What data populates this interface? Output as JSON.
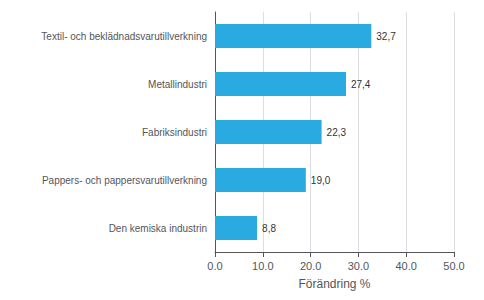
{
  "chart_data": {
    "type": "bar",
    "orientation": "horizontal",
    "categories": [
      "Den kemiska industrin",
      "Pappers- och pappersvarutillverkning",
      "Fabriksindustri",
      "Metallindustri",
      "Textil- och beklädnadsvarutillverkning"
    ],
    "values": [
      8.8,
      19.0,
      22.3,
      27.4,
      32.7
    ],
    "value_labels": [
      "8,8",
      "19,0",
      "22,3",
      "27,4",
      "32,7"
    ],
    "data_labels": true,
    "color": "#29ABE2",
    "xlabel": "Förändring %",
    "xlim": [
      0,
      50
    ],
    "xticks": [
      {
        "value": 0,
        "label": "0.0"
      },
      {
        "value": 10,
        "label": "10.0"
      },
      {
        "value": 20,
        "label": "20.0"
      },
      {
        "value": 30,
        "label": "30.0"
      },
      {
        "value": 40,
        "label": "40.0"
      },
      {
        "value": 50,
        "label": "50.0"
      }
    ],
    "grid": true
  }
}
